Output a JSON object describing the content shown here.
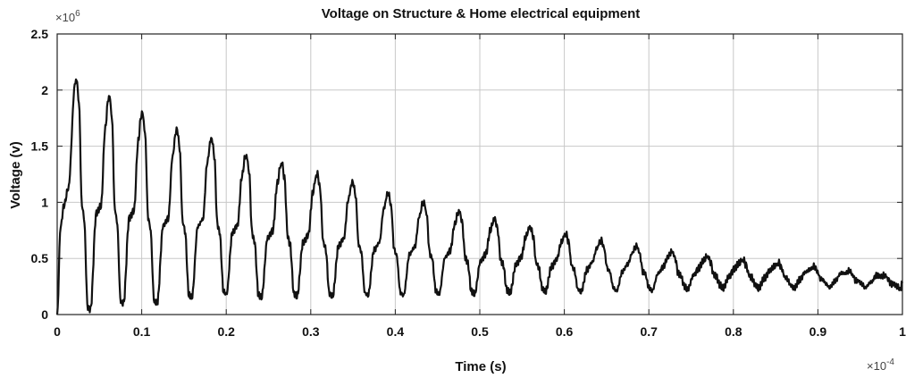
{
  "chart_data": {
    "type": "line",
    "title": "Voltage on Structure & Home electrical equipment",
    "xlabel": "Time (s)",
    "ylabel": "Voltage (v)",
    "x_multiplier": {
      "base": "×10",
      "exp": "-4"
    },
    "y_multiplier": {
      "base": "×10",
      "exp": "6"
    },
    "xlim": [
      0,
      1
    ],
    "ylim": [
      0,
      2.5
    ],
    "xticks": [
      0,
      0.1,
      0.2,
      0.3,
      0.4,
      0.5,
      0.6,
      0.7,
      0.8,
      0.9,
      1
    ],
    "xtick_labels": [
      "0",
      "0.1",
      "0.2",
      "0.3",
      "0.4",
      "0.5",
      "0.6",
      "0.7",
      "0.8",
      "0.9",
      "1"
    ],
    "yticks": [
      0,
      0.5,
      1,
      1.5,
      2,
      2.5
    ],
    "ytick_labels": [
      "0",
      "0.5",
      "1",
      "1.5",
      "2",
      "2.5"
    ],
    "grid": true,
    "oscillation": {
      "period": 0.0418,
      "peak_times": [
        0.023,
        0.062,
        0.101,
        0.142,
        0.183,
        0.224,
        0.266,
        0.308,
        0.35,
        0.392,
        0.434,
        0.476,
        0.518,
        0.56,
        0.602,
        0.644,
        0.686,
        0.728,
        0.77,
        0.812,
        0.854,
        0.896,
        0.938,
        0.98
      ],
      "peaks": [
        2.1,
        1.95,
        1.8,
        1.65,
        1.57,
        1.42,
        1.35,
        1.25,
        1.18,
        1.08,
        1.0,
        0.92,
        0.85,
        0.78,
        0.72,
        0.66,
        0.61,
        0.56,
        0.52,
        0.49,
        0.46,
        0.43,
        0.39,
        0.35
      ],
      "troughs": [
        0.05,
        0.1,
        0.1,
        0.15,
        0.18,
        0.15,
        0.16,
        0.16,
        0.17,
        0.17,
        0.18,
        0.18,
        0.19,
        0.2,
        0.2,
        0.21,
        0.21,
        0.22,
        0.23,
        0.23,
        0.23,
        0.24,
        0.24,
        0.22
      ]
    },
    "series": [
      {
        "values": []
      }
    ]
  }
}
